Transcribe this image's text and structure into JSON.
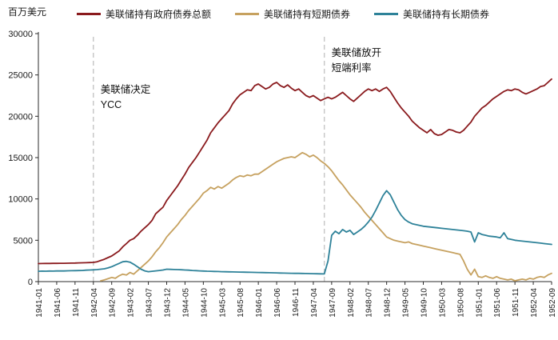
{
  "chart_data": {
    "type": "line",
    "ylabel": "百万美元",
    "ylim": [
      0,
      30000
    ],
    "y_ticks": [
      0,
      5000,
      10000,
      15000,
      20000,
      25000,
      30000
    ],
    "x_tick_every": 5,
    "grid": false,
    "legend_position": "top",
    "x": [
      "1941-01",
      "1941-02",
      "1941-03",
      "1941-04",
      "1941-05",
      "1941-06",
      "1941-07",
      "1941-08",
      "1941-09",
      "1941-10",
      "1941-11",
      "1941-12",
      "1942-01",
      "1942-02",
      "1942-03",
      "1942-04",
      "1942-05",
      "1942-06",
      "1942-07",
      "1942-08",
      "1942-09",
      "1942-10",
      "1942-11",
      "1942-12",
      "1943-01",
      "1943-02",
      "1943-03",
      "1943-04",
      "1943-05",
      "1943-06",
      "1943-07",
      "1943-08",
      "1943-09",
      "1943-10",
      "1943-11",
      "1943-12",
      "1944-01",
      "1944-02",
      "1944-03",
      "1944-04",
      "1944-05",
      "1944-06",
      "1944-07",
      "1944-08",
      "1944-09",
      "1944-10",
      "1944-11",
      "1944-12",
      "1945-01",
      "1945-02",
      "1945-03",
      "1945-04",
      "1945-05",
      "1945-06",
      "1945-07",
      "1945-08",
      "1945-09",
      "1945-10",
      "1945-11",
      "1945-12",
      "1946-01",
      "1946-02",
      "1946-03",
      "1946-04",
      "1946-05",
      "1946-06",
      "1946-07",
      "1946-08",
      "1946-09",
      "1946-10",
      "1946-11",
      "1946-12",
      "1947-01",
      "1947-02",
      "1947-03",
      "1947-04",
      "1947-05",
      "1947-06",
      "1947-07",
      "1947-08",
      "1947-09",
      "1947-10",
      "1947-11",
      "1947-12",
      "1948-01",
      "1948-02",
      "1948-03",
      "1948-04",
      "1948-05",
      "1948-06",
      "1948-07",
      "1948-08",
      "1948-09",
      "1948-10",
      "1948-11",
      "1948-12",
      "1949-01",
      "1949-02",
      "1949-03",
      "1949-04",
      "1949-05",
      "1949-06",
      "1949-07",
      "1949-08",
      "1949-09",
      "1949-10",
      "1949-11",
      "1949-12",
      "1950-01",
      "1950-02",
      "1950-03",
      "1950-04",
      "1950-05",
      "1950-06",
      "1950-07",
      "1950-08",
      "1950-09",
      "1950-10",
      "1950-11",
      "1950-12",
      "1951-01",
      "1951-02",
      "1951-03",
      "1951-04",
      "1951-05",
      "1951-06",
      "1951-07",
      "1951-08",
      "1951-09",
      "1951-10",
      "1951-11",
      "1951-12",
      "1952-01",
      "1952-02",
      "1952-03",
      "1952-04",
      "1952-05",
      "1952-06",
      "1952-07",
      "1952-08",
      "1952-09"
    ],
    "series": [
      {
        "name": "美联储持有政府债券总额",
        "color": "#8a1a1d",
        "values": [
          2180,
          2190,
          2200,
          2200,
          2210,
          2210,
          2220,
          2220,
          2230,
          2240,
          2250,
          2260,
          2270,
          2280,
          2300,
          2320,
          2400,
          2550,
          2700,
          2900,
          3100,
          3400,
          3700,
          4200,
          4600,
          5000,
          5200,
          5600,
          6100,
          6500,
          6900,
          7400,
          8200,
          8600,
          9000,
          9800,
          10400,
          11000,
          11600,
          12300,
          13000,
          13800,
          14400,
          15000,
          15700,
          16400,
          17100,
          18000,
          18600,
          19200,
          19700,
          20200,
          20700,
          21500,
          22100,
          22600,
          22900,
          23200,
          23100,
          23700,
          23900,
          23600,
          23300,
          23500,
          23900,
          24100,
          23700,
          23500,
          23800,
          23400,
          23100,
          23300,
          22900,
          22500,
          22300,
          22500,
          22200,
          21900,
          22100,
          22300,
          22100,
          22300,
          22600,
          22900,
          22500,
          22100,
          21800,
          22200,
          22600,
          23000,
          23300,
          23100,
          23300,
          23000,
          23300,
          23500,
          23000,
          22300,
          21600,
          21000,
          20500,
          20000,
          19400,
          19000,
          18600,
          18300,
          18000,
          18400,
          17900,
          17700,
          17800,
          18100,
          18400,
          18300,
          18100,
          18000,
          18300,
          18800,
          19300,
          20000,
          20500,
          21000,
          21300,
          21700,
          22100,
          22400,
          22700,
          23000,
          23200,
          23100,
          23300,
          23200,
          22900,
          22700,
          22900,
          23100,
          23300,
          23600,
          23700,
          24100,
          24500
        ]
      },
      {
        "name": "美联储持有短期债券",
        "color": "#c6a15f",
        "values": [
          null,
          null,
          null,
          null,
          null,
          null,
          null,
          null,
          null,
          null,
          null,
          null,
          null,
          null,
          null,
          null,
          null,
          100,
          200,
          350,
          500,
          400,
          700,
          900,
          800,
          1100,
          900,
          1300,
          1700,
          2100,
          2500,
          3000,
          3600,
          4100,
          4700,
          5400,
          5900,
          6400,
          6900,
          7500,
          8000,
          8600,
          9100,
          9600,
          10100,
          10700,
          11000,
          11400,
          11200,
          11500,
          11300,
          11600,
          11900,
          12300,
          12600,
          12800,
          12700,
          12900,
          12800,
          13000,
          13000,
          13300,
          13600,
          13900,
          14200,
          14500,
          14700,
          14900,
          15000,
          15100,
          15000,
          15300,
          15600,
          15400,
          15100,
          15300,
          15000,
          14600,
          14300,
          13900,
          13400,
          12800,
          12200,
          11700,
          11100,
          10500,
          10000,
          9500,
          9000,
          8400,
          7900,
          7400,
          6900,
          6400,
          5900,
          5400,
          5200,
          5000,
          4900,
          4800,
          4700,
          4800,
          4600,
          4500,
          4400,
          4300,
          4200,
          4100,
          4000,
          3900,
          3800,
          3700,
          3600,
          3500,
          3400,
          3300,
          2500,
          1500,
          800,
          1500,
          600,
          500,
          700,
          500,
          400,
          600,
          400,
          300,
          200,
          300,
          100,
          200,
          300,
          200,
          400,
          300,
          500,
          600,
          500,
          800,
          1000
        ]
      },
      {
        "name": "美联储持有长期债券",
        "color": "#2e8299",
        "values": [
          1250,
          1270,
          1260,
          1280,
          1270,
          1290,
          1300,
          1290,
          1310,
          1320,
          1330,
          1340,
          1350,
          1380,
          1400,
          1420,
          1450,
          1500,
          1550,
          1650,
          1800,
          2000,
          2200,
          2400,
          2450,
          2350,
          2100,
          1800,
          1500,
          1300,
          1200,
          1250,
          1300,
          1350,
          1400,
          1500,
          1480,
          1460,
          1450,
          1430,
          1400,
          1380,
          1350,
          1330,
          1300,
          1280,
          1260,
          1250,
          1230,
          1220,
          1200,
          1190,
          1180,
          1170,
          1160,
          1150,
          1140,
          1130,
          1120,
          1110,
          1100,
          1090,
          1080,
          1070,
          1060,
          1050,
          1040,
          1030,
          1020,
          1010,
          1000,
          1000,
          990,
          980,
          970,
          960,
          950,
          940,
          930,
          2500,
          5600,
          6100,
          5800,
          6300,
          6000,
          6200,
          5700,
          6000,
          6300,
          6700,
          7200,
          7800,
          8600,
          9500,
          10400,
          11000,
          10500,
          9600,
          8700,
          8000,
          7500,
          7200,
          7000,
          6900,
          6800,
          6700,
          6650,
          6600,
          6550,
          6500,
          6450,
          6400,
          6350,
          6300,
          6250,
          6200,
          6150,
          6100,
          6000,
          4800,
          5900,
          5700,
          5600,
          5500,
          5450,
          5400,
          5300,
          5900,
          5200,
          5100,
          5000,
          4950,
          4900,
          4850,
          4800,
          4750,
          4700,
          4650,
          4600,
          4550,
          4500
        ]
      }
    ],
    "vlines": [
      {
        "month": "1942-04",
        "color": "#c8c8c8"
      },
      {
        "month": "1947-07",
        "color": "#c8c8c8"
      }
    ]
  },
  "annotations": [
    {
      "month": "1942-04",
      "lines": [
        "美联储决定",
        "YCC"
      ]
    },
    {
      "month": "1947-07",
      "lines": [
        "美联储放开",
        "短端利率"
      ]
    }
  ]
}
